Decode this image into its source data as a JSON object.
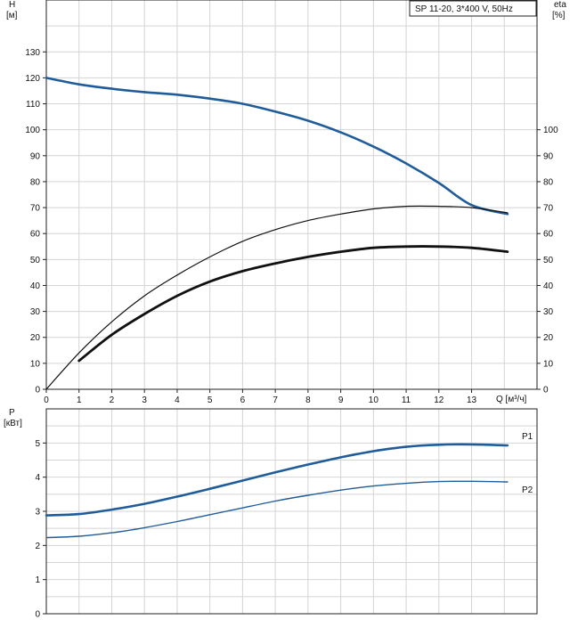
{
  "title_box": "SP 11-20, 3*400 V, 50Hz",
  "colors": {
    "head": "#1f5c99",
    "power": "#1f5c99",
    "eta": "#111111",
    "grid": "#d4d4d4",
    "label_power": "#2a62a8"
  },
  "chart_data": [
    {
      "type": "line",
      "title": "SP 11-20, 3*400 V, 50Hz",
      "xlabel": "Q [м³/ч]",
      "ylabel": "H [м]",
      "y2label": "eta [%]",
      "xlim": [
        0,
        15
      ],
      "ylim": [
        0,
        150
      ],
      "y2lim": [
        0,
        150
      ],
      "x_ticks": [
        "0",
        "1",
        "2",
        "3",
        "4",
        "5",
        "6",
        "7",
        "8",
        "9",
        "10",
        "11",
        "12",
        "13"
      ],
      "y_ticks": [
        "0",
        "10",
        "20",
        "30",
        "40",
        "50",
        "60",
        "70",
        "80",
        "90",
        "100",
        "110",
        "120",
        "130"
      ],
      "y2_ticks": [
        "0",
        "10",
        "20",
        "30",
        "40",
        "50",
        "60",
        "70",
        "80",
        "90",
        "100"
      ],
      "grid": true,
      "series": [
        {
          "name": "H",
          "axis": "left",
          "x": [
            0,
            1,
            2,
            3,
            4,
            5,
            6,
            7,
            8,
            9,
            10,
            11,
            12,
            13,
            14.1
          ],
          "y": [
            120,
            117.5,
            115.8,
            114.5,
            113.5,
            112,
            110,
            107,
            103.5,
            99,
            93.5,
            87,
            79.5,
            71,
            67.5
          ]
        },
        {
          "name": "eta",
          "axis": "right",
          "x": [
            0,
            1,
            2,
            3,
            4,
            5,
            6,
            7,
            8,
            9,
            10,
            11,
            12,
            13,
            14.1
          ],
          "y": [
            0,
            14,
            26,
            36,
            44,
            51,
            57,
            61.5,
            65,
            67.5,
            69.5,
            70.5,
            70.5,
            70,
            68
          ]
        },
        {
          "name": "eta",
          "axis": "right",
          "x": [
            1,
            2,
            3,
            4,
            5,
            6,
            7,
            8,
            9,
            10,
            11,
            12,
            13,
            14.1
          ],
          "y": [
            11,
            21,
            29,
            36,
            41.5,
            45.5,
            48.5,
            51,
            53,
            54.5,
            55,
            55,
            54.5,
            53
          ]
        }
      ]
    },
    {
      "type": "line",
      "xlabel": "",
      "ylabel": "P [кВт]",
      "xlim": [
        0,
        15
      ],
      "ylim": [
        0,
        6
      ],
      "y_ticks": [
        "0",
        "1",
        "2",
        "3",
        "4",
        "5"
      ],
      "grid": true,
      "series": [
        {
          "name": "P1",
          "x": [
            0,
            1,
            2,
            3,
            4,
            5,
            6,
            7,
            8,
            9,
            10,
            11,
            12,
            13,
            14.1
          ],
          "y": [
            2.88,
            2.92,
            3.05,
            3.22,
            3.43,
            3.66,
            3.9,
            4.14,
            4.37,
            4.58,
            4.76,
            4.89,
            4.95,
            4.96,
            4.93
          ]
        },
        {
          "name": "P2",
          "x": [
            0,
            1,
            2,
            3,
            4,
            5,
            6,
            7,
            8,
            9,
            10,
            11,
            12,
            13,
            14.1
          ],
          "y": [
            2.23,
            2.27,
            2.37,
            2.52,
            2.7,
            2.9,
            3.1,
            3.3,
            3.47,
            3.62,
            3.74,
            3.82,
            3.87,
            3.88,
            3.86
          ]
        }
      ]
    }
  ]
}
